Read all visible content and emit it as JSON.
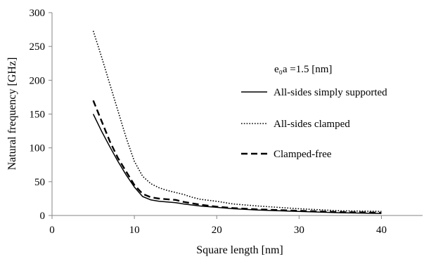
{
  "chart_data": {
    "type": "line",
    "title": "",
    "xlabel": "Square length [nm]",
    "ylabel": "Natural frequency [GHz]",
    "xlim": [
      0,
      45
    ],
    "ylim": [
      0,
      300
    ],
    "xticks": [
      0,
      10,
      20,
      30,
      40
    ],
    "yticks": [
      0,
      50,
      100,
      150,
      200,
      250,
      300
    ],
    "grid": false,
    "legend_position": "right",
    "legend_title": "e₀a =1.5 [nm]",
    "series": [
      {
        "name": "All-sides simply supported",
        "style": "solid",
        "color": "#000000",
        "x": [
          5,
          6,
          7,
          8,
          9,
          10,
          11,
          12,
          13,
          14,
          15,
          16,
          18,
          20,
          22,
          25,
          30,
          35,
          40
        ],
        "y": [
          150,
          125,
          102,
          80,
          60,
          42,
          28,
          23,
          21,
          20,
          19,
          17,
          14,
          12,
          10,
          8,
          6,
          4,
          3
        ]
      },
      {
        "name": "All-sides clamped",
        "style": "dotted",
        "color": "#000000",
        "x": [
          5,
          6,
          7,
          8,
          9,
          10,
          11,
          12,
          13,
          14,
          15,
          16,
          17,
          18,
          20,
          22,
          25,
          30,
          35,
          40
        ],
        "y": [
          273,
          235,
          195,
          155,
          115,
          80,
          58,
          47,
          41,
          37,
          34,
          31,
          27,
          24,
          21,
          17,
          14,
          10,
          7,
          6
        ]
      },
      {
        "name": "Clamped-free",
        "style": "dashed",
        "color": "#000000",
        "x": [
          5,
          6,
          7,
          8,
          9,
          10,
          11,
          12,
          13,
          14,
          15,
          16,
          18,
          20,
          22,
          25,
          30,
          35,
          40
        ],
        "y": [
          170,
          140,
          110,
          85,
          65,
          45,
          32,
          27,
          25,
          24,
          23,
          20,
          16,
          13,
          11,
          9,
          7,
          5,
          4
        ]
      }
    ]
  }
}
